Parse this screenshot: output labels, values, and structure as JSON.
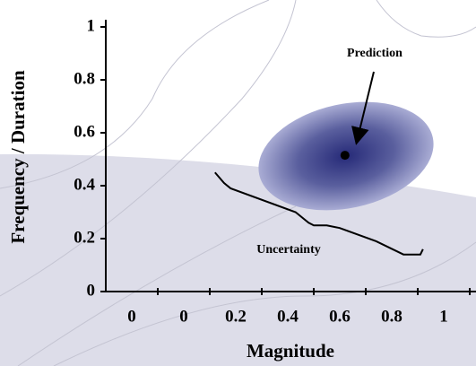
{
  "chart_data": {
    "type": "line",
    "x_label": "Magnitude",
    "y_label": "Frequency / Duration",
    "x": [
      0.12,
      0.155,
      0.18,
      0.43,
      0.48,
      0.5,
      0.55,
      0.6,
      0.74,
      0.845,
      0.91,
      0.92
    ],
    "values": [
      0.45,
      0.41,
      0.39,
      0.3,
      0.26,
      0.25,
      0.25,
      0.24,
      0.19,
      0.14,
      0.14,
      0.16
    ],
    "color": "#000000",
    "prediction_point": {
      "x": 0.62,
      "y": 0.515
    },
    "annotations": [
      "Prediction",
      "Uncertainty"
    ],
    "xlim": [
      -0.3,
      1.124
    ],
    "xticks": [
      {
        "value": -0.2,
        "label": "0"
      },
      0,
      0.2,
      0.4,
      0.6,
      0.8,
      1
    ],
    "ylim": [
      0,
      1
    ],
    "yticks": [
      0,
      0.2,
      0.4,
      0.6,
      0.8,
      1
    ]
  }
}
